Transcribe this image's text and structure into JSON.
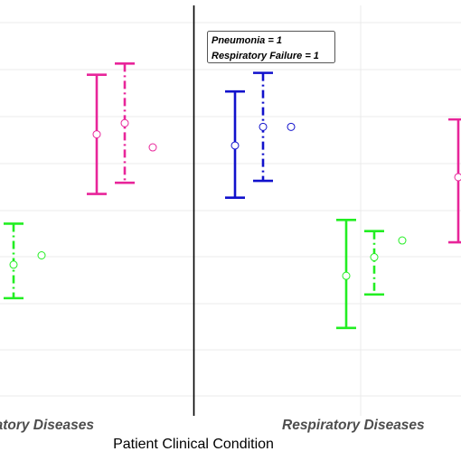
{
  "chart_data": {
    "type": "errorbar",
    "xlabel": "Patient Clinical Condition",
    "categories": [
      "Respiratory Diseases",
      "Respiratory Diseases"
    ],
    "annotation": [
      "Pneumonia = 1",
      "Respiratory Failure = 1"
    ],
    "grid": true,
    "colors": {
      "green": "#22ee22",
      "magenta": "#e8259a",
      "blue": "#1111cc"
    },
    "panels": [
      {
        "category": "Respiratory Diseases",
        "groups": [
          {
            "color": "green",
            "estimates": [
              {
                "style": "dashdot",
                "value": 0.2,
                "lower": 0.02,
                "upper": 0.42
              },
              {
                "style": "none",
                "value": 0.25
              }
            ]
          },
          {
            "color": "magenta",
            "estimates": [
              {
                "style": "solid",
                "value": 0.9,
                "lower": 0.58,
                "upper": 1.22
              },
              {
                "style": "dashdot",
                "value": 0.96,
                "lower": 0.64,
                "upper": 1.28
              },
              {
                "style": "none",
                "value": 0.83
              }
            ]
          }
        ]
      },
      {
        "category": "Respiratory Diseases",
        "groups": [
          {
            "color": "blue",
            "estimates": [
              {
                "style": "solid",
                "value": 0.84,
                "lower": 0.56,
                "upper": 1.13
              },
              {
                "style": "dashdot",
                "value": 0.94,
                "lower": 0.65,
                "upper": 1.23
              },
              {
                "style": "none",
                "value": 0.94
              }
            ]
          },
          {
            "color": "green",
            "estimates": [
              {
                "style": "solid",
                "value": 0.14,
                "lower": -0.14,
                "upper": 0.44
              },
              {
                "style": "dashdot",
                "value": 0.24,
                "lower": 0.04,
                "upper": 0.38
              },
              {
                "style": "none",
                "value": 0.33
              }
            ]
          },
          {
            "color": "magenta",
            "estimates": [
              {
                "style": "solid",
                "value": 0.67,
                "lower": 0.32,
                "upper": 0.98
              }
            ]
          }
        ]
      }
    ]
  }
}
